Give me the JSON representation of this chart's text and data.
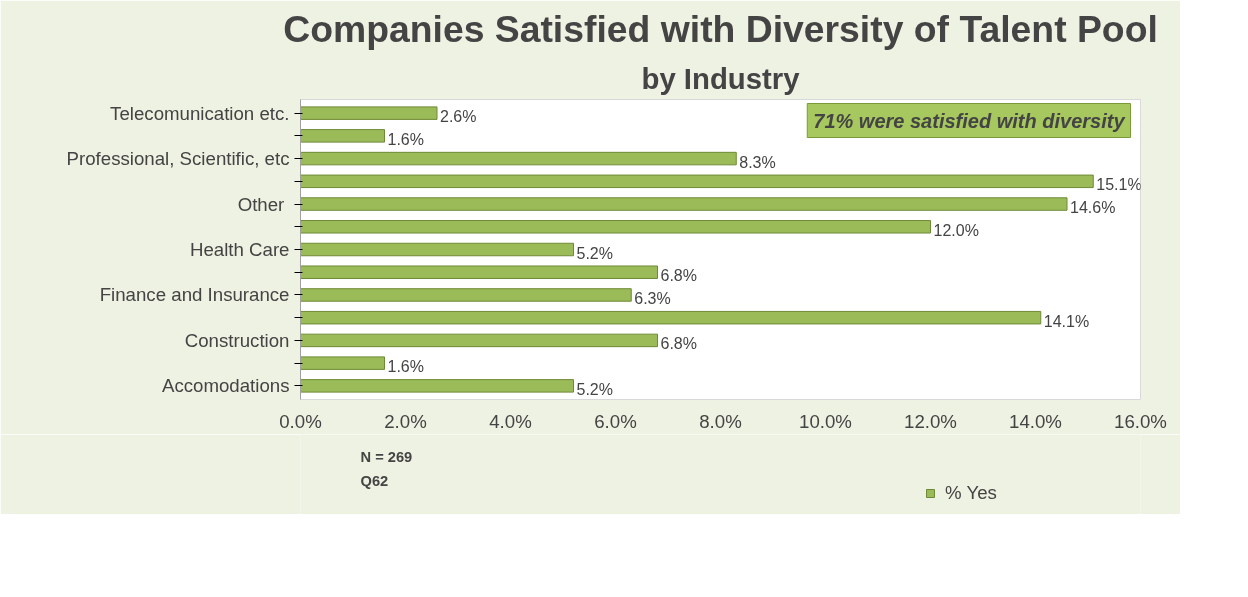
{
  "chart_data": {
    "type": "bar",
    "orientation": "horizontal",
    "title": "Companies Satisfied with Diversity of Talent Pool",
    "subtitle": "by Industry",
    "categories": [
      "Telecomunication etc.",
      null,
      "Professional, Scientific, etc",
      null,
      "Other ",
      null,
      "Health Care",
      null,
      "Finance and Insurance",
      null,
      "Construction",
      null,
      "Accomodations"
    ],
    "series": [
      {
        "name": "% Yes",
        "color": "#9bbb59",
        "values": [
          2.6,
          1.6,
          8.3,
          15.1,
          14.6,
          12.0,
          5.2,
          6.8,
          6.3,
          14.1,
          6.8,
          1.6,
          5.2
        ],
        "value_labels": [
          "2.6%",
          "1.6%",
          "8.3%",
          "15.1%",
          "14.6%",
          "12.0%",
          "5.2%",
          "6.8%",
          "6.3%",
          "14.1%",
          "6.8%",
          "1.6%",
          "5.2%"
        ]
      }
    ],
    "xlim": [
      0,
      16
    ],
    "xticks": [
      {
        "value": 0,
        "label": "0.0%"
      },
      {
        "value": 2,
        "label": "2.0%"
      },
      {
        "value": 4,
        "label": "4.0%"
      },
      {
        "value": 6,
        "label": "6.0%"
      },
      {
        "value": 8,
        "label": "8.0%"
      },
      {
        "value": 10,
        "label": "10.0%"
      },
      {
        "value": 12,
        "label": "12.0%"
      },
      {
        "value": 14,
        "label": "14.0%"
      },
      {
        "value": 16,
        "label": "16.0%"
      }
    ],
    "grid": false,
    "legend": "bottom",
    "annotations": [
      "71% were satisfied with diversity",
      "N = 269",
      "Q62"
    ]
  }
}
